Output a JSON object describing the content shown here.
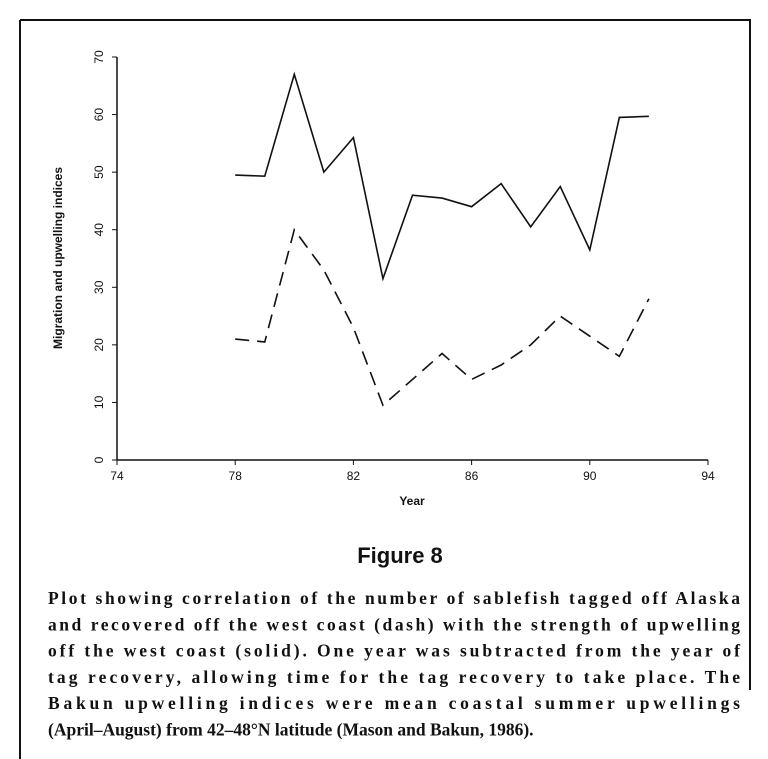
{
  "chart_data": {
    "type": "line",
    "xlabel": "Year",
    "ylabel": "Migration and upwelling indices",
    "x": [
      78,
      79,
      80,
      81,
      82,
      83,
      84,
      85,
      86,
      87,
      88,
      89,
      90,
      91,
      92
    ],
    "series": [
      {
        "color": "#111111",
        "linestyle": "solid",
        "values": [
          49.5,
          49.3,
          67,
          50,
          56,
          31.5,
          46,
          45.5,
          44,
          48,
          40.5,
          47.5,
          36.5,
          59.5,
          59.7
        ]
      },
      {
        "color": "#111111",
        "linestyle": "dashed",
        "values": [
          21,
          20.5,
          40,
          33,
          23,
          9.5,
          14,
          18.5,
          14,
          16.5,
          20,
          25,
          21.5,
          18,
          28
        ]
      }
    ],
    "xlim": [
      74,
      94
    ],
    "xticks": [
      74,
      78,
      82,
      86,
      90,
      94
    ],
    "ylim": [
      0,
      70
    ],
    "yticks": [
      0,
      10,
      20,
      30,
      40,
      50,
      60,
      70
    ]
  },
  "figure_label": "Figure 8",
  "caption_lines": [
    "Plot showing correlation of the number of sablefish tagged off Alaska",
    "and recovered off the west coast (dash) with the strength of upwelling",
    "off the west coast (solid). One year was subtracted from the year of",
    "tag recovery, allowing time for the tag recovery to take place. The",
    "Bakun upwelling indices were mean coastal summer upwellings",
    "(April–August) from 42–48°N latitude (Mason and Bakun, 1986)."
  ]
}
